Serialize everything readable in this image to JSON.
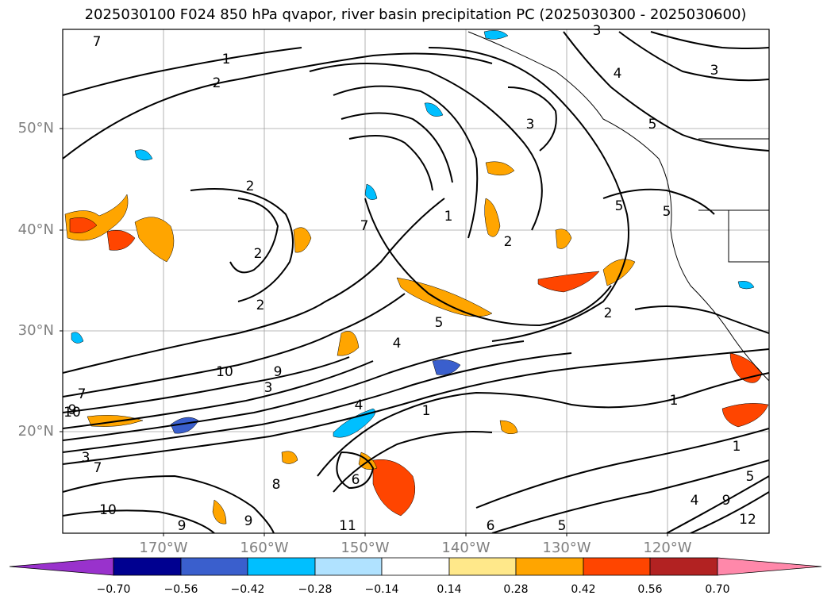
{
  "title": "2025030100 F024 850 hPa qvapor, river basin precipitation PC (2025030300 - 2025030600)",
  "lat_labels": [
    "50°N",
    "40°N",
    "30°N",
    "20°N"
  ],
  "lon_labels": [
    "170°W",
    "160°W",
    "150°W",
    "140°W",
    "130°W",
    "120°W"
  ],
  "colorbar": {
    "ticks": [
      "−0.70",
      "−0.56",
      "−0.42",
      "−0.28",
      "−0.14",
      "0.14",
      "0.28",
      "0.42",
      "0.56",
      "0.70"
    ],
    "colors": [
      "#9932cc",
      "#000090",
      "#3a5fcd",
      "#00bfff",
      "#b0e2ff",
      "#ffffff",
      "#ffe88a",
      "#ffa500",
      "#ff4500",
      "#b22222",
      "#ff88aa"
    ]
  },
  "contour_labels": [
    "7",
    "1",
    "2",
    "3",
    "4",
    "5",
    "3",
    "2",
    "2",
    "2",
    "1",
    "2",
    "5",
    "9",
    "10",
    "9",
    "3",
    "10",
    "7",
    "3",
    "5",
    "4",
    "1",
    "6",
    "4",
    "6",
    "5",
    "1",
    "1",
    "2",
    "5",
    "4",
    "9",
    "5",
    "7",
    "8",
    "9",
    "11",
    "9",
    "10",
    "12",
    "7",
    "3"
  ]
}
